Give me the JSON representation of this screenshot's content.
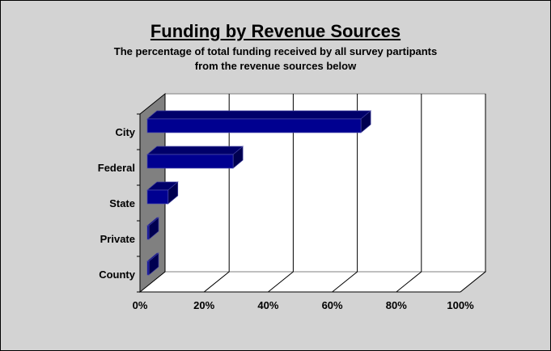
{
  "chart_data": {
    "type": "bar",
    "orientation": "horizontal",
    "style": "3d",
    "title": "Funding by Revenue Sources",
    "subtitle": [
      "The percentage of total funding received by all survey partipants",
      "from the revenue sources below"
    ],
    "categories": [
      "City",
      "Federal",
      "State",
      "Private",
      "County"
    ],
    "values": [
      66.7,
      26.8,
      6.5,
      0.5,
      0.5
    ],
    "unit": "%",
    "xlim": [
      0,
      100
    ],
    "xticks": [
      "0%",
      "20%",
      "40%",
      "60%",
      "80%",
      "100%"
    ],
    "grid": true,
    "legend": "none",
    "colors": {
      "bar": "#000090",
      "bar_top": "#00006a",
      "bar_side": "#000050",
      "wall": "#808080",
      "background": "#d3d3d3"
    }
  }
}
